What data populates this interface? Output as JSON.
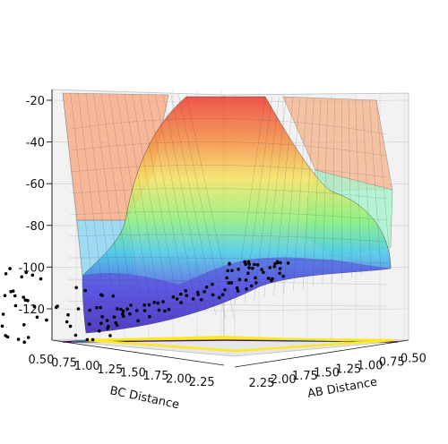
{
  "chart_data": {
    "type": "surface",
    "title": "",
    "axes": {
      "x": {
        "label": "AB Distance",
        "ticks": [
          "2.25",
          "2.00",
          "1.75",
          "1.50",
          "1.25",
          "1.00",
          "0.75",
          "0.50"
        ]
      },
      "y": {
        "label": "BC Distance",
        "ticks": [
          "0.50",
          "0.75",
          "1.00",
          "1.25",
          "1.50",
          "1.75",
          "2.00",
          "2.25"
        ]
      },
      "z": {
        "ticks": [
          "-20",
          "-40",
          "-60",
          "-80",
          "-100",
          "-120"
        ],
        "zlim": [
          -130,
          -20
        ]
      }
    },
    "surface": {
      "description_colormap": "jet",
      "z_min": -130,
      "z_max": -20,
      "grid_lines": true
    },
    "contour": {
      "colormap": "viridis",
      "z_plane": -130
    },
    "trajectory": {
      "color": "#000000",
      "marker": "dot",
      "z_range": [
        -130,
        -100
      ]
    },
    "colors": {
      "pane": "#f2f2f2",
      "grid": "#d0d0d0",
      "points": "#000000",
      "surface_high": "#ee4433",
      "surface_low": "#3322aa",
      "plateau_left": "#f7b08a",
      "plateau_right": "#9ef0c0"
    }
  }
}
